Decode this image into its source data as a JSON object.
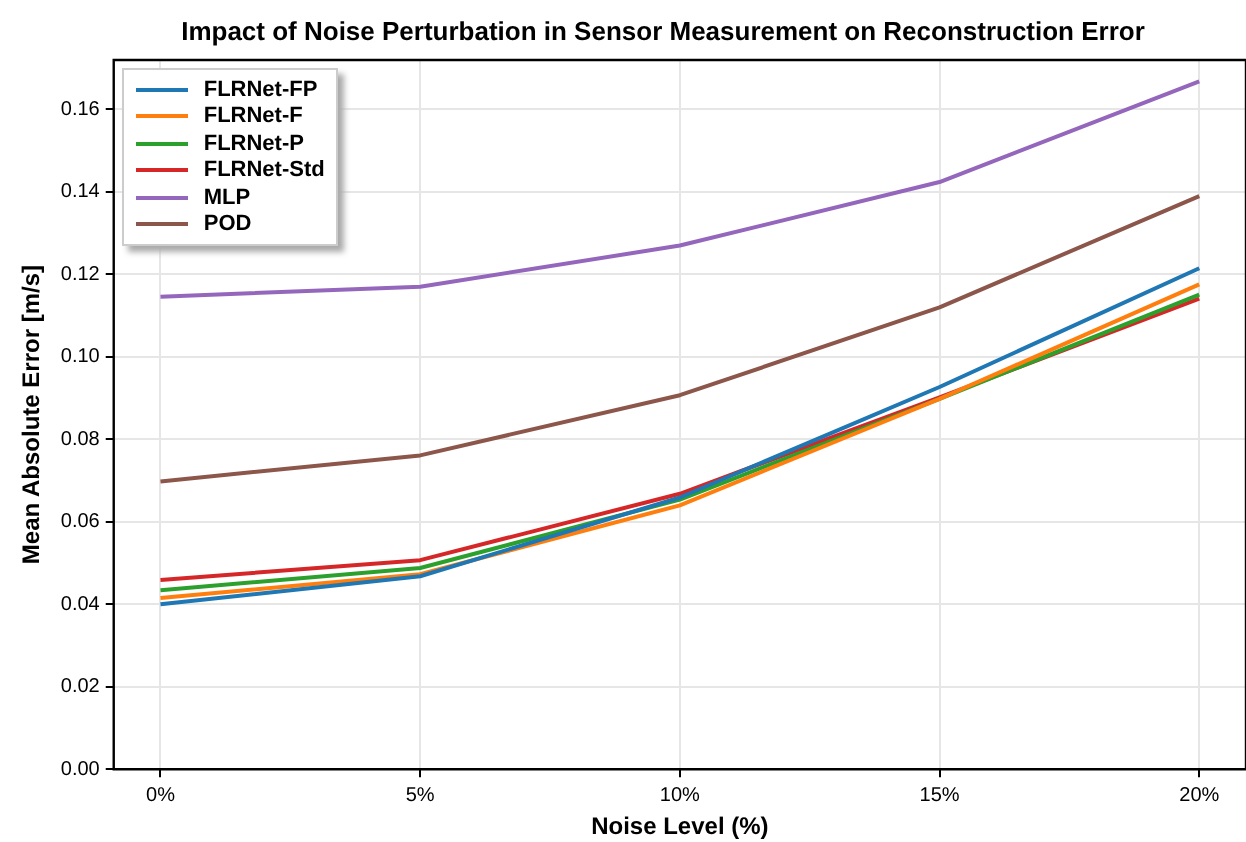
{
  "chart_data": {
    "type": "line",
    "title": "Impact of Noise Perturbation in Sensor Measurement on Reconstruction Error",
    "xlabel": "Noise Level (%)",
    "ylabel": "Mean Absolute Error [m/s]",
    "x": [
      0,
      5,
      10,
      15,
      20
    ],
    "xlim": [
      -0.9,
      20.9
    ],
    "xticks": [
      {
        "value": 0,
        "label": "0%"
      },
      {
        "value": 5,
        "label": "5%"
      },
      {
        "value": 10,
        "label": "10%"
      },
      {
        "value": 15,
        "label": "15%"
      },
      {
        "value": 20,
        "label": "20%"
      }
    ],
    "ylim": [
      0,
      0.172
    ],
    "yticks": [
      {
        "value": 0,
        "label": "0.00"
      },
      {
        "value": 0.02,
        "label": "0.02"
      },
      {
        "value": 0.04,
        "label": "0.04"
      },
      {
        "value": 0.06,
        "label": "0.06"
      },
      {
        "value": 0.08,
        "label": "0.08"
      },
      {
        "value": 0.1,
        "label": "0.10"
      },
      {
        "value": 0.12,
        "label": "0.12"
      },
      {
        "value": 0.14,
        "label": "0.14"
      },
      {
        "value": 0.16,
        "label": "0.16"
      }
    ],
    "series": [
      {
        "name": "FLRNet-FP",
        "color": "#1f77b4",
        "values": [
          0.04,
          0.0468,
          0.0659,
          0.0927,
          0.1215
        ]
      },
      {
        "name": "FLRNet-F",
        "color": "#ff7f0e",
        "values": [
          0.0415,
          0.0473,
          0.064,
          0.0898,
          0.1176
        ]
      },
      {
        "name": "FLRNet-P",
        "color": "#2ca02c",
        "values": [
          0.0434,
          0.0488,
          0.0654,
          0.0898,
          0.1151
        ]
      },
      {
        "name": "FLRNet-Std",
        "color": "#d62728",
        "values": [
          0.0459,
          0.0507,
          0.0668,
          0.0902,
          0.1141
        ]
      },
      {
        "name": "MLP",
        "color": "#9467bd",
        "values": [
          0.1146,
          0.117,
          0.127,
          0.1424,
          0.1668
        ]
      },
      {
        "name": "POD",
        "color": "#8c564b",
        "values": [
          0.0698,
          0.0761,
          0.0907,
          0.112,
          0.139
        ]
      }
    ],
    "grid": true,
    "legend": "top left",
    "marker": "none",
    "line_style": "solid"
  }
}
